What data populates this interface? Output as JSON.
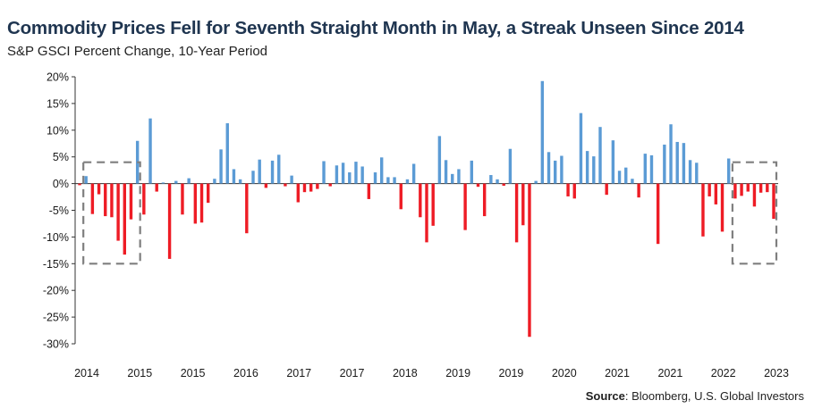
{
  "header": {
    "title": "Commodity Prices Fell for Seventh Straight Month in May, a Streak Unseen Since 2014",
    "subtitle": "S&P GSCI Percent Change, 10-Year Period"
  },
  "footer": {
    "source_label": "Source",
    "source_text": ": Bloomberg, U.S. Global Investors"
  },
  "colors": {
    "positive": "#5b9bd5",
    "negative": "#ee1c25",
    "highlight_box": "#7f7f7f",
    "axis": "#333333"
  },
  "chart_data": {
    "type": "bar",
    "title": "Commodity Prices Fell for Seventh Straight Month in May, a Streak Unseen Since 2014",
    "subtitle": "S&P GSCI Percent Change, 10-Year Period",
    "xlabel": "",
    "ylabel": "",
    "ylim": [
      -30,
      20
    ],
    "yticks": [
      20,
      15,
      10,
      5,
      0,
      -5,
      -10,
      -15,
      -20,
      -25,
      -30
    ],
    "ytick_labels": [
      "20%",
      "15%",
      "10%",
      "5%",
      "0%",
      "-5%",
      "-10%",
      "-15%",
      "-20%",
      "-25%",
      "-30%"
    ],
    "xtick_labels": [
      "2014",
      "2015",
      "2015",
      "2016",
      "2017",
      "2017",
      "2018",
      "2019",
      "2019",
      "2020",
      "2021",
      "2021",
      "2022",
      "2023"
    ],
    "grid": false,
    "values": [
      -0.3,
      1.4,
      -5.7,
      -2.0,
      -6.1,
      -6.3,
      -10.7,
      -13.3,
      -6.7,
      8.0,
      -5.8,
      12.2,
      -1.5,
      0.2,
      -14.1,
      0.5,
      -5.8,
      1.0,
      -7.5,
      -7.3,
      -3.6,
      0.9,
      6.4,
      11.3,
      2.7,
      0.8,
      -9.3,
      2.4,
      4.5,
      -0.8,
      4.3,
      5.4,
      -0.5,
      1.5,
      -3.5,
      -1.6,
      -1.5,
      -1.0,
      4.2,
      -0.5,
      3.4,
      3.9,
      2.1,
      4.1,
      3.2,
      -2.9,
      2.1,
      4.9,
      1.2,
      1.2,
      -4.8,
      0.8,
      3.7,
      -6.3,
      -11.0,
      -7.9,
      8.9,
      4.4,
      1.8,
      2.7,
      -8.7,
      4.3,
      -0.6,
      -6.1,
      1.6,
      0.8,
      -0.4,
      6.5,
      -11.0,
      -7.8,
      -28.7,
      0.5,
      19.2,
      5.9,
      4.3,
      5.2,
      -2.4,
      -2.8,
      13.2,
      6.1,
      5.1,
      10.6,
      -2.1,
      8.1,
      2.4,
      3.0,
      0.9,
      -2.6,
      5.6,
      5.3,
      -11.3,
      7.3,
      11.1,
      7.8,
      7.6,
      4.4,
      3.9,
      -9.9,
      -2.4,
      -3.9,
      -9.0,
      4.7,
      -2.8,
      -2.3,
      -1.5,
      -4.3,
      -1.7,
      -1.6,
      -6.6
    ],
    "highlight_boxes": [
      {
        "label": "",
        "from_index": 1,
        "to_index": 9,
        "ymin": -15,
        "ymax": 4
      },
      {
        "label": "",
        "from_index": 102,
        "to_index": 108,
        "ymin": -15,
        "ymax": 4
      }
    ]
  }
}
